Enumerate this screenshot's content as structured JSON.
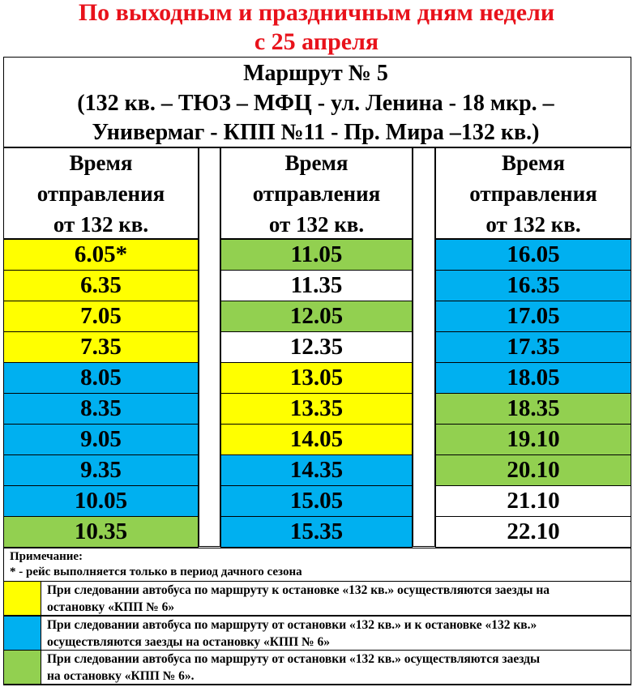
{
  "title": {
    "line1": "По выходным и праздничным дням недели",
    "line2": "с 25 апреля"
  },
  "route": {
    "number": "Маршрут № 5",
    "path_line1": "(132 кв. – ТЮЗ – МФЦ - ул. Ленина - 18 мкр. –",
    "path_line2": "Универмаг - КПП №11 - Пр. Мира –132 кв.)"
  },
  "columns": [
    {
      "header": [
        "Время",
        "отправления",
        "от 132 кв."
      ],
      "times": [
        "6.05*",
        "6.35",
        "7.05",
        "7.35",
        "8.05",
        "8.35",
        "9.05",
        "9.35",
        "10.05",
        "10.35"
      ],
      "colors": [
        "yellow",
        "yellow",
        "yellow",
        "yellow",
        "blue",
        "blue",
        "blue",
        "blue",
        "blue",
        "green"
      ]
    },
    {
      "header": [
        "Время",
        "отправления",
        "от 132 кв."
      ],
      "times": [
        "11.05",
        "11.35",
        "12.05",
        "12.35",
        "13.05",
        "13.35",
        "14.05",
        "14.35",
        "15.05",
        "15.35"
      ],
      "colors": [
        "green",
        "white",
        "green",
        "white",
        "yellow",
        "yellow",
        "yellow",
        "blue",
        "blue",
        "blue"
      ]
    },
    {
      "header": [
        "Время",
        "отправления",
        "от 132 кв."
      ],
      "times": [
        "16.05",
        "16.35",
        "17.05",
        "17.35",
        "18.05",
        "18.35",
        "19.10",
        "20.10",
        "21.10",
        "22.10"
      ],
      "colors": [
        "blue",
        "blue",
        "blue",
        "blue",
        "blue",
        "green",
        "green",
        "green",
        "white",
        "white"
      ]
    }
  ],
  "colors": {
    "yellow": "#ffff00",
    "blue": "#00b0f0",
    "green": "#92d050",
    "white": "#ffffff",
    "title_red": "#e8121b"
  },
  "notes": {
    "label": "Примечание:",
    "asterisk": "* - рейс выполняется только в период дачного сезона"
  },
  "legend": [
    {
      "color": "yellow",
      "text_line1": "При следовании автобуса по маршруту к остановке «132 кв.» осуществляются заезды на",
      "text_line2": "остановку «КПП № 6»"
    },
    {
      "color": "blue",
      "text_line1": "При следовании автобуса по маршруту от остановки «132 кв.» и к остановке «132 кв.»",
      "text_line2": "осуществляются заезды на остановку «КПП № 6»"
    },
    {
      "color": "green",
      "text_line1": "При следовании автобуса по маршруту от остановки «132 кв.» осуществляются заезды",
      "text_line2": "на остановку «КПП № 6»."
    }
  ]
}
